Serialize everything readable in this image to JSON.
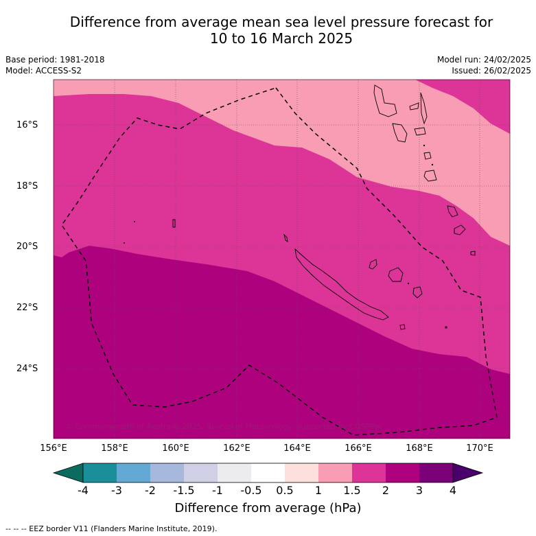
{
  "title_line1": "Difference from average mean sea level pressure forecast for",
  "title_line2": "10 to 16 March 2025",
  "base_period": "Base period: 1981-2018",
  "model": "Model: ACCESS-S2",
  "model_run": "Model run: 24/02/2025",
  "issued": "Issued: 26/02/2025",
  "lat_labels": [
    "16°S",
    "18°S",
    "20°S",
    "22°S",
    "24°S"
  ],
  "lon_labels": [
    "156°E",
    "158°E",
    "160°E",
    "162°E",
    "164°E",
    "166°E",
    "168°E",
    "170°E"
  ],
  "copyright": "© Commonwealth of Australia 2025, Bureau of Meteorology, supported by COSPPac",
  "colorbar": {
    "title": "Difference from average (hPa)",
    "tick_labels": [
      "-4",
      "-3",
      "-2",
      "-1.5",
      "-1",
      "-0.5",
      "0.5",
      "1",
      "1.5",
      "2",
      "3",
      "4"
    ],
    "colors": {
      "below_-4": "#0b6b5e",
      "-4_-3": "#1b8f99",
      "-3_-2": "#63a9d3",
      "-2_-1.5": "#a6b9dd",
      "-1.5_-1": "#cfd0e6",
      "-1_-0.5": "#ecebee",
      "-0.5_0.5": "#ffffff",
      "0.5_1": "#fde0dd",
      "1_1.5": "#f99db5",
      "1.5_2": "#dd3497",
      "2_3": "#ae017e",
      "3_4": "#7a0177",
      "above_4": "#49006a"
    }
  },
  "legend_note": "--  --  -- EEZ border V11 (Flanders Marine Institute, 2019)."
}
